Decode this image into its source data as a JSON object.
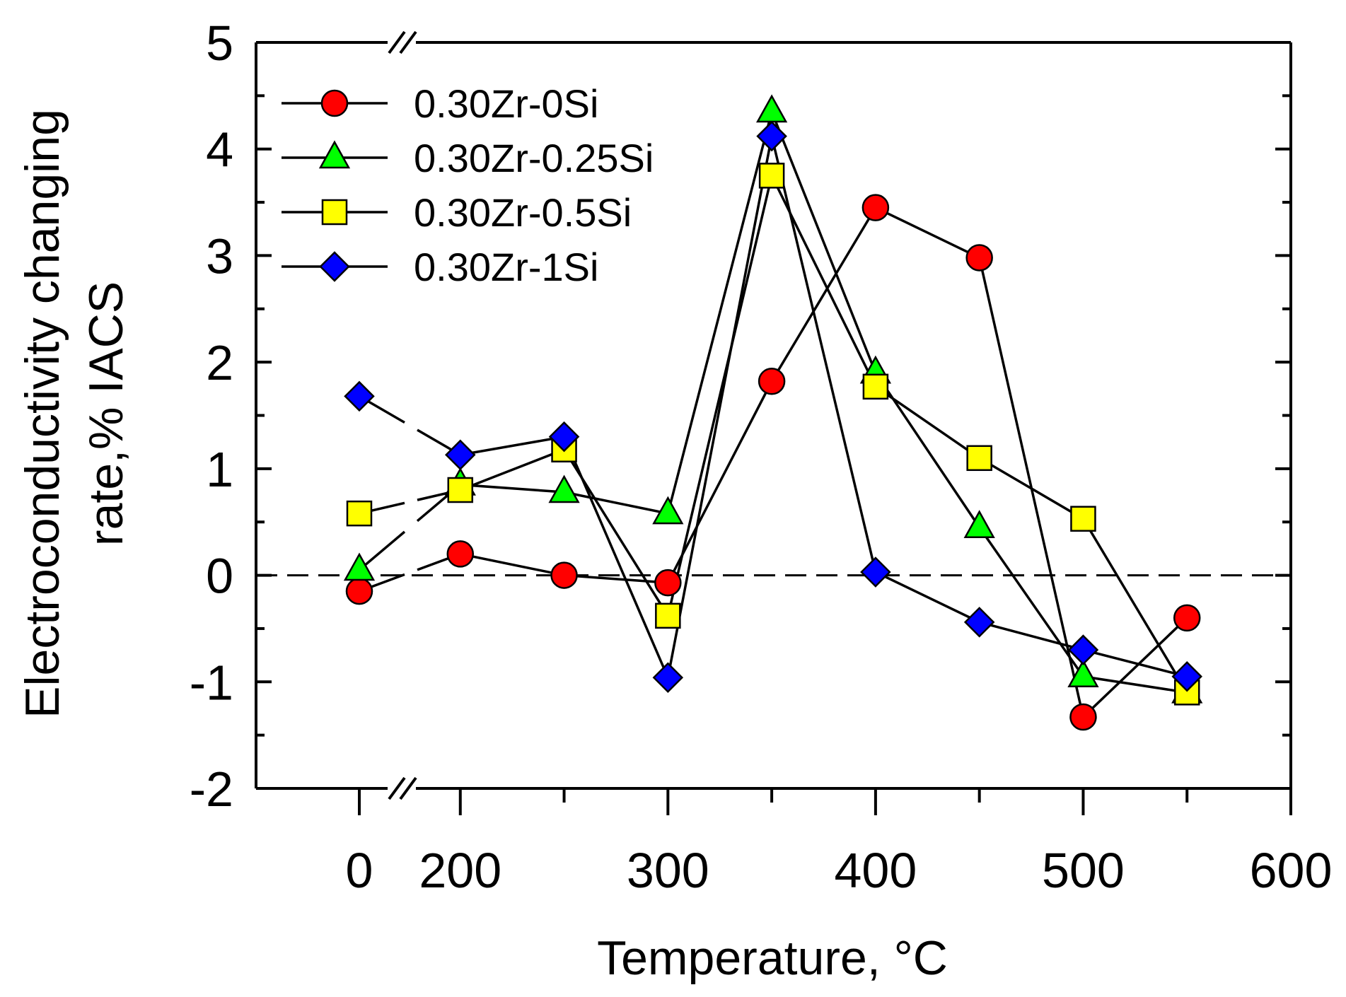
{
  "chart_data": {
    "type": "line",
    "xlabel": "Temperature, °C",
    "ylabel_lines": [
      "Electroconductivity changing",
      "rate,% IACS"
    ],
    "x_ticks": [
      "0",
      "200",
      "300",
      "400",
      "500",
      "600"
    ],
    "y_ticks": [
      "5",
      "4",
      "3",
      "2",
      "1",
      "0",
      "-1",
      "-2"
    ],
    "ylim": [
      -2,
      5
    ],
    "xlim_after_break": [
      150,
      600
    ],
    "axis_break": "between 0 and 200 on x axis",
    "reference_line": {
      "y": 0,
      "style": "dashed"
    },
    "legend_position": "top-left",
    "series": [
      {
        "name": "0.30Zr-0Si",
        "marker": "circle",
        "color": "#ff0000",
        "x": [
          0,
          200,
          250,
          300,
          350,
          400,
          450,
          500,
          550
        ],
        "values": [
          -0.15,
          0.2,
          0.0,
          -0.07,
          1.82,
          3.45,
          2.98,
          -1.33,
          -0.4
        ]
      },
      {
        "name": "0.30Zr-0.25Si",
        "marker": "triangle",
        "color": "#00ff00",
        "x": [
          0,
          200,
          250,
          300,
          350,
          400,
          450,
          500,
          550
        ],
        "values": [
          0.05,
          0.85,
          0.78,
          0.58,
          4.35,
          1.9,
          0.45,
          -0.95,
          -1.1
        ]
      },
      {
        "name": "0.30Zr-0.5Si",
        "marker": "square",
        "color": "#ffff00",
        "x": [
          0,
          200,
          250,
          300,
          350,
          400,
          450,
          500,
          550
        ],
        "values": [
          0.58,
          0.8,
          1.18,
          -0.38,
          3.75,
          1.77,
          1.1,
          0.53,
          -1.1
        ]
      },
      {
        "name": "0.30Zr-1Si",
        "marker": "diamond",
        "color": "#0000ff",
        "x": [
          0,
          200,
          250,
          300,
          350,
          400,
          450,
          500,
          550
        ],
        "values": [
          1.68,
          1.13,
          1.3,
          -0.96,
          4.12,
          0.03,
          -0.44,
          -0.7,
          -0.95
        ]
      }
    ]
  }
}
